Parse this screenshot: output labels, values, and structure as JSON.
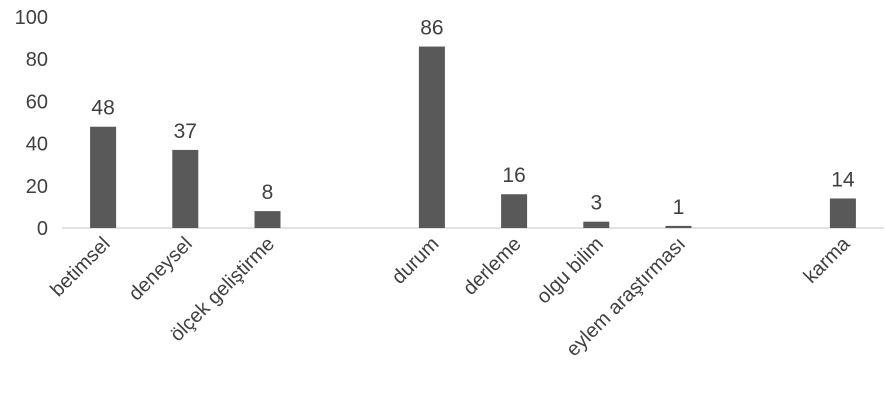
{
  "chart_data": {
    "type": "bar",
    "categories": [
      "betimsel",
      "deneysel",
      "ölçek geliştirme",
      "",
      "durum",
      "derleme",
      "olgu bilim",
      "eylem araştırması",
      "",
      "karma"
    ],
    "values": [
      48,
      37,
      8,
      null,
      86,
      16,
      3,
      1,
      null,
      14
    ],
    "data_labels": [
      "48",
      "37",
      "8",
      "",
      "86",
      "16",
      "3",
      "1",
      "",
      "14"
    ],
    "y_ticks": [
      "0",
      "20",
      "40",
      "60",
      "80",
      "100"
    ],
    "ylim": [
      0,
      100
    ],
    "title": "",
    "xlabel": "",
    "ylabel": "",
    "grid": false,
    "legend": "none",
    "colors": {
      "bar": "#595959",
      "axis": "#d9d9d9",
      "text": "#404040"
    }
  }
}
